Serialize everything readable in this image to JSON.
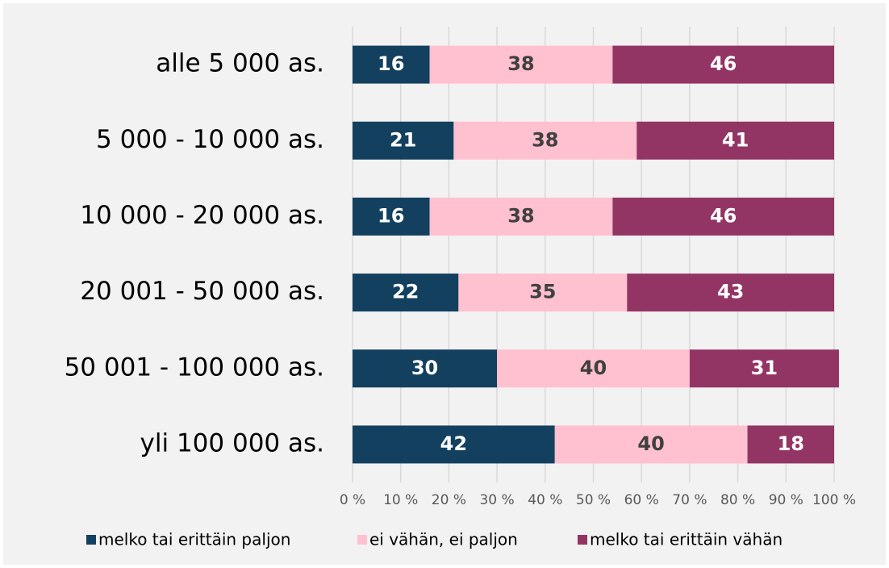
{
  "chart_data": {
    "type": "bar",
    "orientation": "horizontal",
    "stacked": true,
    "categories": [
      "alle 5 000 as.",
      "5 000 - 10 000 as.",
      "10 000 - 20 000 as.",
      "20 001 - 50 000 as.",
      "50 001 - 100 000 as.",
      "yli 100 000 as."
    ],
    "series": [
      {
        "name": "melko tai erittäin paljon",
        "color": "#13405f",
        "label_color": "#ffffff",
        "values": [
          16,
          21,
          16,
          22,
          30,
          42
        ]
      },
      {
        "name": "ei vähän, ei paljon",
        "color": "#ffc0cf",
        "label_color": "#404040",
        "values": [
          38,
          38,
          38,
          35,
          40,
          40
        ]
      },
      {
        "name": "melko tai erittäin vähän",
        "color": "#933564",
        "label_color": "#ffffff",
        "values": [
          46,
          41,
          46,
          43,
          31,
          18
        ]
      }
    ],
    "xlim": [
      0,
      100
    ],
    "xticks": [
      {
        "value": 0,
        "label": "0 %"
      },
      {
        "value": 10,
        "label": "10 %"
      },
      {
        "value": 20,
        "label": "20 %"
      },
      {
        "value": 30,
        "label": "30 %"
      },
      {
        "value": 40,
        "label": "40 %"
      },
      {
        "value": 50,
        "label": "50 %"
      },
      {
        "value": 60,
        "label": "60 %"
      },
      {
        "value": 70,
        "label": "70 %"
      },
      {
        "value": 80,
        "label": "80 %"
      },
      {
        "value": 90,
        "label": "90 %"
      },
      {
        "value": 100,
        "label": "100 %"
      }
    ],
    "grid": true,
    "legend": "bottom"
  }
}
